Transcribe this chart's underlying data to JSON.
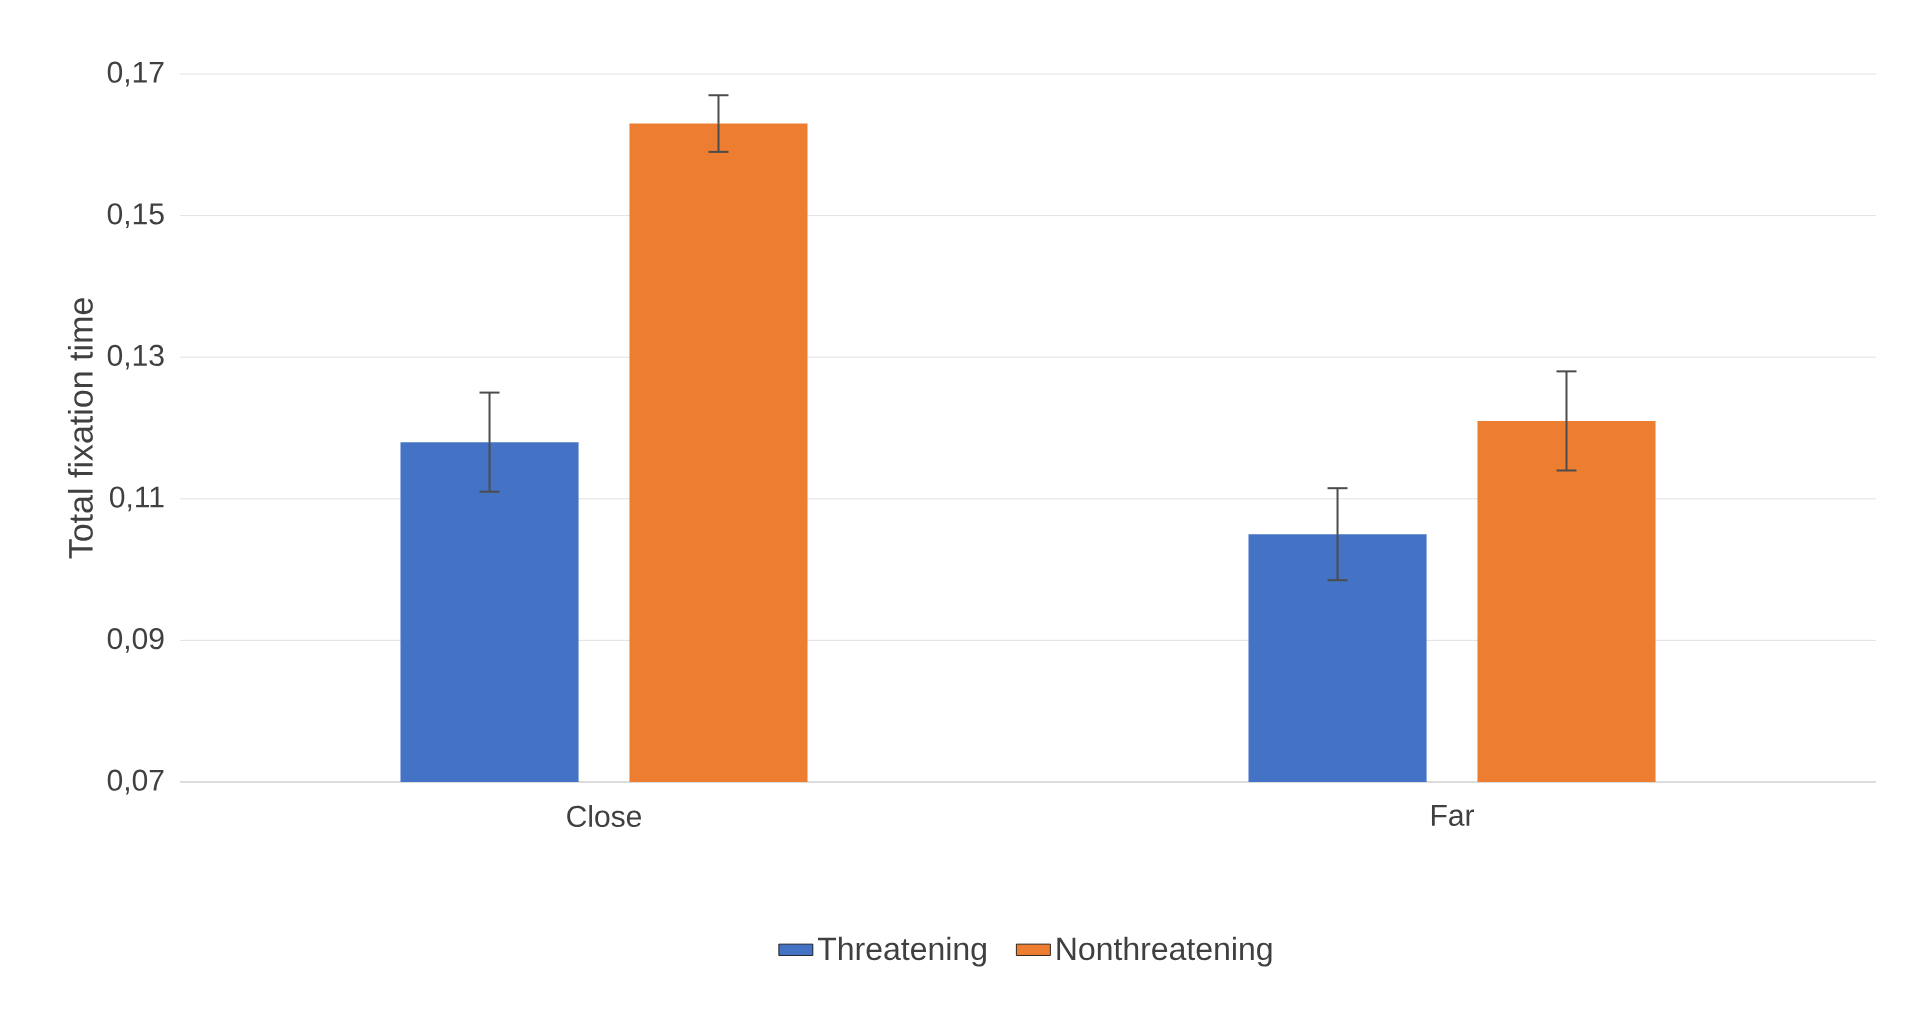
{
  "chart_data": {
    "type": "bar",
    "ylabel": "Total fixation time",
    "categories": [
      "Close",
      "Far"
    ],
    "series": [
      {
        "name": "Threatening",
        "color": "#4472c4",
        "values": [
          0.118,
          0.105
        ],
        "errors": [
          0.007,
          0.0065
        ]
      },
      {
        "name": "Nonthreatening",
        "color": "#ed7d31",
        "values": [
          0.163,
          0.121
        ],
        "errors": [
          0.004,
          0.007
        ]
      }
    ],
    "ylim": [
      0.07,
      0.17
    ],
    "yticks": [
      {
        "value": 0.07,
        "label": "0,07"
      },
      {
        "value": 0.09,
        "label": "0,09"
      },
      {
        "value": 0.11,
        "label": "0,11"
      },
      {
        "value": 0.13,
        "label": "0,13"
      },
      {
        "value": 0.15,
        "label": "0,15"
      },
      {
        "value": 0.17,
        "label": "0,17"
      }
    ],
    "grid": "y",
    "legend": "bottom"
  }
}
